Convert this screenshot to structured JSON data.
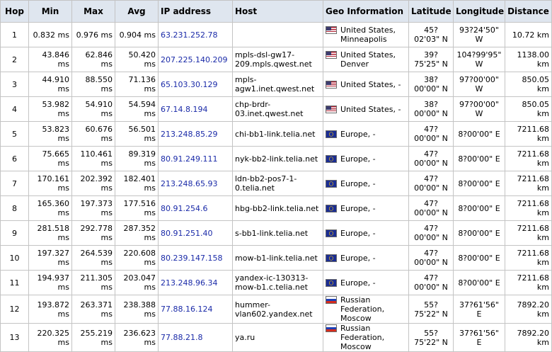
{
  "columns": {
    "hop": "Hop",
    "min": "Min",
    "max": "Max",
    "avg": "Avg",
    "ip": "IP address",
    "host": "Host",
    "geo": "Geo Information",
    "lat": "Latitude",
    "lon": "Longitude",
    "dist": "Distance"
  },
  "rows": [
    {
      "hop": "1",
      "min": "0.832 ms",
      "max": "0.976 ms",
      "avg": "0.904 ms",
      "ip": "63.231.252.78",
      "host": "",
      "flag": "us",
      "geo": "United States, Minneapolis",
      "lat": "45? 02'03\" N",
      "lon": "93?24'50\" W",
      "dist": "10.72 km"
    },
    {
      "hop": "2",
      "min": "43.846 ms",
      "max": "62.846 ms",
      "avg": "50.420 ms",
      "ip": "207.225.140.209",
      "host": "mpls-dsl-gw17-209.mpls.qwest.net",
      "flag": "us",
      "geo": "United States, Denver",
      "lat": "39? 75'25\" N",
      "lon": "104?99'95\" W",
      "dist": "1138.00 km"
    },
    {
      "hop": "3",
      "min": "44.910 ms",
      "max": "88.550 ms",
      "avg": "71.136 ms",
      "ip": "65.103.30.129",
      "host": "mpls-agw1.inet.qwest.net",
      "flag": "us",
      "geo": "United States, -",
      "lat": "38? 00'00\" N",
      "lon": "97?00'00\" W",
      "dist": "850.05 km"
    },
    {
      "hop": "4",
      "min": "53.982 ms",
      "max": "54.910 ms",
      "avg": "54.594 ms",
      "ip": "67.14.8.194",
      "host": "chp-brdr-03.inet.qwest.net",
      "flag": "us",
      "geo": "United States, -",
      "lat": "38? 00'00\" N",
      "lon": "97?00'00\" W",
      "dist": "850.05 km"
    },
    {
      "hop": "5",
      "min": "53.823 ms",
      "max": "60.676 ms",
      "avg": "56.501 ms",
      "ip": "213.248.85.29",
      "host": "chi-bb1-link.telia.net",
      "flag": "eu",
      "geo": "Europe, -",
      "lat": "47? 00'00\" N",
      "lon": "8?00'00\" E",
      "dist": "7211.68 km"
    },
    {
      "hop": "6",
      "min": "75.665 ms",
      "max": "110.461 ms",
      "avg": "89.319 ms",
      "ip": "80.91.249.111",
      "host": "nyk-bb2-link.telia.net",
      "flag": "eu",
      "geo": "Europe, -",
      "lat": "47? 00'00\" N",
      "lon": "8?00'00\" E",
      "dist": "7211.68 km"
    },
    {
      "hop": "7",
      "min": "170.161 ms",
      "max": "202.392 ms",
      "avg": "182.401 ms",
      "ip": "213.248.65.93",
      "host": "ldn-bb2-pos7-1-0.telia.net",
      "flag": "eu",
      "geo": "Europe, -",
      "lat": "47? 00'00\" N",
      "lon": "8?00'00\" E",
      "dist": "7211.68 km"
    },
    {
      "hop": "8",
      "min": "165.360 ms",
      "max": "197.373 ms",
      "avg": "177.516 ms",
      "ip": "80.91.254.6",
      "host": "hbg-bb2-link.telia.net",
      "flag": "eu",
      "geo": "Europe, -",
      "lat": "47? 00'00\" N",
      "lon": "8?00'00\" E",
      "dist": "7211.68 km"
    },
    {
      "hop": "9",
      "min": "281.518 ms",
      "max": "292.778 ms",
      "avg": "287.352 ms",
      "ip": "80.91.251.40",
      "host": "s-bb1-link.telia.net",
      "flag": "eu",
      "geo": "Europe, -",
      "lat": "47? 00'00\" N",
      "lon": "8?00'00\" E",
      "dist": "7211.68 km"
    },
    {
      "hop": "10",
      "min": "197.327 ms",
      "max": "264.539 ms",
      "avg": "220.608 ms",
      "ip": "80.239.147.158",
      "host": "mow-b1-link.telia.net",
      "flag": "eu",
      "geo": "Europe, -",
      "lat": "47? 00'00\" N",
      "lon": "8?00'00\" E",
      "dist": "7211.68 km"
    },
    {
      "hop": "11",
      "min": "194.937 ms",
      "max": "211.305 ms",
      "avg": "203.047 ms",
      "ip": "213.248.96.34",
      "host": "yandex-ic-130313-mow-b1.c.telia.net",
      "flag": "eu",
      "geo": "Europe, -",
      "lat": "47? 00'00\" N",
      "lon": "8?00'00\" E",
      "dist": "7211.68 km"
    },
    {
      "hop": "12",
      "min": "193.872 ms",
      "max": "263.371 ms",
      "avg": "238.388 ms",
      "ip": "77.88.16.124",
      "host": "hummer-vlan602.yandex.net",
      "flag": "ru",
      "geo": "Russian Federation, Moscow",
      "lat": "55? 75'22\" N",
      "lon": "37?61'56\" E",
      "dist": "7892.20 km"
    },
    {
      "hop": "13",
      "min": "220.325 ms",
      "max": "255.219 ms",
      "avg": "236.623 ms",
      "ip": "77.88.21.8",
      "host": "ya.ru",
      "flag": "ru",
      "geo": "Russian Federation, Moscow",
      "lat": "55? 75'22\" N",
      "lon": "37?61'56\" E",
      "dist": "7892.20 km"
    }
  ],
  "colors": {
    "header_bg": "#dfe6ef",
    "border": "#c4c4c4",
    "ip_link": "#1a2aa8"
  }
}
